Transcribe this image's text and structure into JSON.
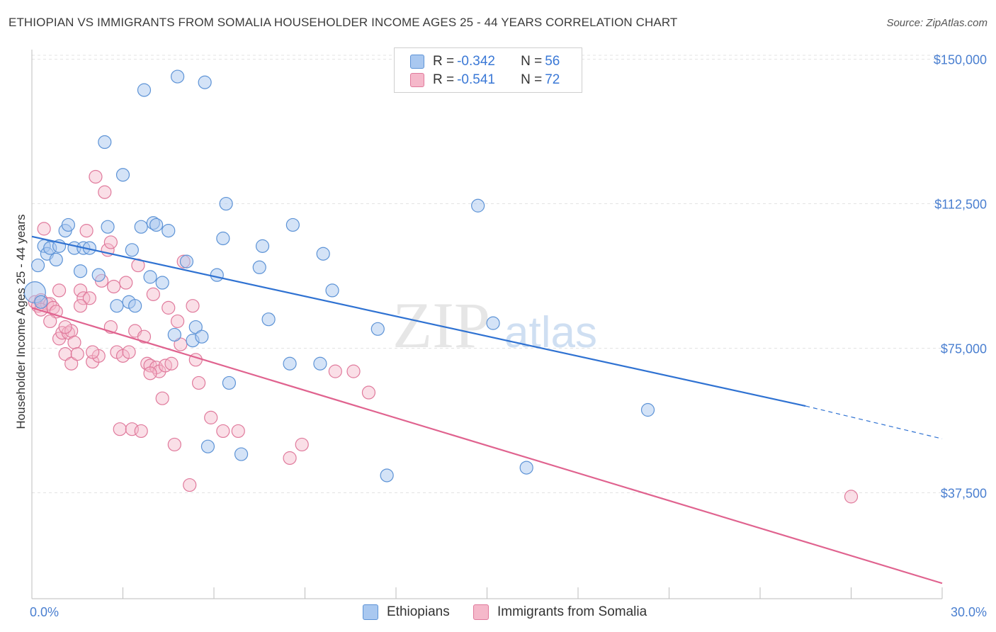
{
  "title": "ETHIOPIAN VS IMMIGRANTS FROM SOMALIA HOUSEHOLDER INCOME AGES 25 - 44 YEARS CORRELATION CHART",
  "source": "Source: ZipAtlas.com",
  "watermark": {
    "zip": "ZIP",
    "atlas": "atlas"
  },
  "legend": {
    "series1": {
      "r_label": "R = ",
      "r_value": "-0.342",
      "n_label": "N = ",
      "n_value": "56"
    },
    "series2": {
      "r_label": "R = ",
      "r_value": "-0.541",
      "n_label": "N = ",
      "n_value": "72"
    }
  },
  "colors": {
    "ethiopians_fill": "#a9c8f0",
    "ethiopians_stroke": "#5d93d6",
    "ethiopians_line": "#2f72d2",
    "somalia_fill": "#f5b8ca",
    "somalia_stroke": "#e07a9c",
    "somalia_line": "#e0638f",
    "tick_text": "#4a7fd0",
    "grid": "#e3e3e3"
  },
  "chart_data": {
    "type": "scatter",
    "title": "ETHIOPIAN VS IMMIGRANTS FROM SOMALIA HOUSEHOLDER INCOME AGES 25 - 44 YEARS CORRELATION CHART",
    "xlabel": "",
    "ylabel": "Householder Income Ages 25 - 44 years",
    "xlim": [
      0,
      30
    ],
    "ylim": [
      10000,
      152500
    ],
    "x_tick_labels": [
      "0.0%",
      "30.0%"
    ],
    "y_ticks": [
      37500,
      75000,
      112500,
      150000
    ],
    "y_tick_labels": [
      "$37,500",
      "$75,000",
      "$112,500",
      "$150,000"
    ],
    "grid": true,
    "legend_position": "top-center",
    "series": [
      {
        "name": "Ethiopians",
        "r": -0.342,
        "n": 56,
        "trend": {
          "x0": 0,
          "y0": 104000,
          "x1": 25.5,
          "y1": 60000,
          "dash_to_x": 30,
          "dash_to_y": 51500
        },
        "points": [
          [
            0.1,
            89500
          ],
          [
            0.2,
            96500
          ],
          [
            0.4,
            101500
          ],
          [
            0.5,
            99500
          ],
          [
            0.6,
            101000
          ],
          [
            0.8,
            98000
          ],
          [
            0.9,
            101500
          ],
          [
            1.1,
            105500
          ],
          [
            1.2,
            107000
          ],
          [
            1.4,
            101000
          ],
          [
            1.6,
            95000
          ],
          [
            1.7,
            101000
          ],
          [
            1.9,
            101000
          ],
          [
            2.2,
            94000
          ],
          [
            2.4,
            128500
          ],
          [
            2.5,
            106500
          ],
          [
            2.8,
            86000
          ],
          [
            3.0,
            120000
          ],
          [
            3.2,
            87000
          ],
          [
            3.3,
            100500
          ],
          [
            3.4,
            86000
          ],
          [
            3.6,
            106500
          ],
          [
            3.7,
            142000
          ],
          [
            3.9,
            93500
          ],
          [
            4.0,
            107500
          ],
          [
            4.1,
            107000
          ],
          [
            4.3,
            92000
          ],
          [
            4.5,
            105500
          ],
          [
            4.7,
            78500
          ],
          [
            4.8,
            145500
          ],
          [
            5.1,
            97500
          ],
          [
            5.3,
            77000
          ],
          [
            5.4,
            80500
          ],
          [
            5.6,
            78000
          ],
          [
            5.7,
            144000
          ],
          [
            5.8,
            49500
          ],
          [
            6.1,
            94000
          ],
          [
            6.3,
            103500
          ],
          [
            6.4,
            112500
          ],
          [
            6.5,
            66000
          ],
          [
            6.9,
            47500
          ],
          [
            7.5,
            96000
          ],
          [
            7.6,
            101500
          ],
          [
            7.8,
            82500
          ],
          [
            8.5,
            71000
          ],
          [
            8.6,
            107000
          ],
          [
            9.5,
            71000
          ],
          [
            9.6,
            99500
          ],
          [
            9.9,
            90000
          ],
          [
            11.4,
            80000
          ],
          [
            11.7,
            42000
          ],
          [
            14.7,
            112000
          ],
          [
            15.2,
            81500
          ],
          [
            16.3,
            44000
          ],
          [
            20.3,
            59000
          ],
          [
            0.3,
            87000
          ]
        ]
      },
      {
        "name": "Immigrants from Somalia",
        "r": -0.541,
        "n": 72,
        "trend": {
          "x0": 0,
          "y0": 85500,
          "x1": 30,
          "y1": 14000
        },
        "points": [
          [
            0.1,
            87000
          ],
          [
            0.2,
            86000
          ],
          [
            0.3,
            87500
          ],
          [
            0.4,
            106000
          ],
          [
            0.5,
            86500
          ],
          [
            0.6,
            86500
          ],
          [
            0.7,
            85500
          ],
          [
            0.8,
            84500
          ],
          [
            0.9,
            77500
          ],
          [
            0.9,
            90000
          ],
          [
            1.0,
            79000
          ],
          [
            1.1,
            73500
          ],
          [
            1.2,
            79000
          ],
          [
            1.3,
            71000
          ],
          [
            1.3,
            79500
          ],
          [
            1.4,
            76500
          ],
          [
            1.5,
            73500
          ],
          [
            1.6,
            90000
          ],
          [
            1.7,
            88000
          ],
          [
            1.8,
            105500
          ],
          [
            1.9,
            88000
          ],
          [
            2.0,
            71500
          ],
          [
            2.1,
            119500
          ],
          [
            2.2,
            73000
          ],
          [
            2.3,
            92500
          ],
          [
            2.4,
            115500
          ],
          [
            2.5,
            100500
          ],
          [
            2.6,
            102500
          ],
          [
            2.6,
            80500
          ],
          [
            2.7,
            91000
          ],
          [
            2.8,
            74000
          ],
          [
            2.9,
            54000
          ],
          [
            3.0,
            73000
          ],
          [
            3.1,
            92000
          ],
          [
            3.2,
            74000
          ],
          [
            3.3,
            54000
          ],
          [
            3.4,
            79500
          ],
          [
            3.5,
            96500
          ],
          [
            3.6,
            53500
          ],
          [
            3.7,
            78000
          ],
          [
            3.8,
            71000
          ],
          [
            3.9,
            70500
          ],
          [
            4.0,
            89000
          ],
          [
            4.1,
            70000
          ],
          [
            4.2,
            69000
          ],
          [
            4.3,
            62000
          ],
          [
            4.4,
            70500
          ],
          [
            4.5,
            85500
          ],
          [
            4.6,
            71000
          ],
          [
            4.7,
            50000
          ],
          [
            4.8,
            82000
          ],
          [
            4.9,
            76000
          ],
          [
            5.0,
            97500
          ],
          [
            5.2,
            39500
          ],
          [
            5.3,
            86000
          ],
          [
            5.4,
            72000
          ],
          [
            5.5,
            66000
          ],
          [
            5.9,
            57000
          ],
          [
            6.3,
            53500
          ],
          [
            6.8,
            53500
          ],
          [
            8.5,
            46500
          ],
          [
            8.9,
            50000
          ],
          [
            10.0,
            69000
          ],
          [
            10.6,
            69000
          ],
          [
            11.1,
            63500
          ],
          [
            27.0,
            36500
          ],
          [
            0.6,
            82000
          ],
          [
            1.1,
            80500
          ],
          [
            0.3,
            85000
          ],
          [
            1.6,
            86000
          ],
          [
            2.0,
            74000
          ],
          [
            3.9,
            68500
          ]
        ]
      }
    ]
  },
  "bottom_legend": {
    "item1": "Ethiopians",
    "item2": "Immigrants from Somalia"
  }
}
